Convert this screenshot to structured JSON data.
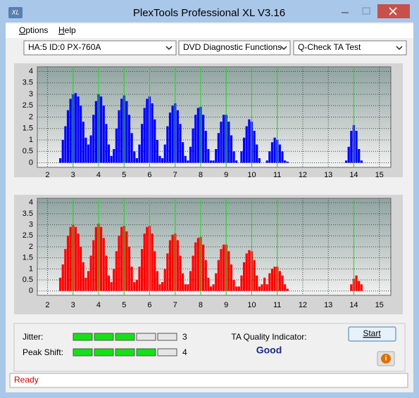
{
  "window": {
    "title": "PlexTools Professional XL V3.16"
  },
  "menu": [
    "Options",
    "Help"
  ],
  "dropdowns": [
    "HA:5 ID:0  PX-760A",
    "DVD Diagnostic Functions",
    "Q-Check TA Test"
  ],
  "charts": [
    {
      "type": "bar",
      "color": "#0000ff",
      "x": [
        2.5,
        2.6,
        2.7,
        2.8,
        2.9,
        3.0,
        3.1,
        3.2,
        3.3,
        3.4,
        3.5,
        3.6,
        3.7,
        3.8,
        3.9,
        4.0,
        4.1,
        4.2,
        4.3,
        4.4,
        4.5,
        4.6,
        4.7,
        4.8,
        4.9,
        5.0,
        5.1,
        5.2,
        5.3,
        5.4,
        5.5,
        5.6,
        5.7,
        5.8,
        5.9,
        6.0,
        6.1,
        6.2,
        6.3,
        6.4,
        6.5,
        6.6,
        6.7,
        6.8,
        6.9,
        7.0,
        7.1,
        7.2,
        7.3,
        7.4,
        7.5,
        7.6,
        7.7,
        7.8,
        7.9,
        8.0,
        8.1,
        8.2,
        8.3,
        8.4,
        8.5,
        8.6,
        8.7,
        8.8,
        8.9,
        9.0,
        9.1,
        9.2,
        9.3,
        9.4,
        9.5,
        9.6,
        9.7,
        9.8,
        9.9,
        10.0,
        10.1,
        10.2,
        10.3,
        10.4,
        10.5,
        10.6,
        10.7,
        10.8,
        10.9,
        11.0,
        11.1,
        11.2,
        11.3,
        11.4,
        13.7,
        13.8,
        13.9,
        14.0,
        14.1,
        14.2,
        14.3
      ],
      "values": [
        0.2,
        1.0,
        1.6,
        2.3,
        2.8,
        3.0,
        3.05,
        2.9,
        2.5,
        1.8,
        1.1,
        0.8,
        1.2,
        2.1,
        2.7,
        3.0,
        2.9,
        2.5,
        1.7,
        0.8,
        0.3,
        0.6,
        1.5,
        2.3,
        2.8,
        2.95,
        2.7,
        2.1,
        1.3,
        0.5,
        0.2,
        0.8,
        1.7,
        2.4,
        2.8,
        2.9,
        2.6,
        1.9,
        1.0,
        0.3,
        0.2,
        0.8,
        1.6,
        2.2,
        2.5,
        2.6,
        2.3,
        1.7,
        0.9,
        0.3,
        0.1,
        0.7,
        1.5,
        2.1,
        2.4,
        2.45,
        2.1,
        1.4,
        0.6,
        0.1,
        0.1,
        0.6,
        1.3,
        1.8,
        2.1,
        2.1,
        1.8,
        1.2,
        0.5,
        0.1,
        0,
        0.5,
        1.1,
        1.6,
        1.9,
        1.8,
        1.4,
        0.8,
        0.2,
        0,
        0,
        0.1,
        0.5,
        0.9,
        1.1,
        1.0,
        0.8,
        0.5,
        0.1,
        0.05,
        0.1,
        0.7,
        1.4,
        1.65,
        1.4,
        0.6,
        0.1
      ],
      "xlim": [
        1.6,
        15.45
      ],
      "ylim": [
        -0.2,
        4.2
      ],
      "xticks": [
        2,
        3,
        4,
        5,
        6,
        7,
        8,
        9,
        10,
        11,
        12,
        13,
        14,
        15
      ],
      "yticks": [
        0,
        0.5,
        1,
        1.5,
        2,
        2.5,
        3,
        3.5,
        4
      ],
      "markers": [
        3,
        4,
        5,
        6,
        7,
        8,
        9,
        10,
        11,
        14
      ]
    },
    {
      "type": "bar",
      "color": "#ff0000",
      "x": [
        2.5,
        2.6,
        2.7,
        2.8,
        2.9,
        3.0,
        3.1,
        3.2,
        3.3,
        3.4,
        3.5,
        3.6,
        3.7,
        3.8,
        3.9,
        4.0,
        4.1,
        4.2,
        4.3,
        4.4,
        4.5,
        4.6,
        4.7,
        4.8,
        4.9,
        5.0,
        5.1,
        5.2,
        5.3,
        5.4,
        5.5,
        5.6,
        5.7,
        5.8,
        5.9,
        6.0,
        6.1,
        6.2,
        6.3,
        6.4,
        6.5,
        6.6,
        6.7,
        6.8,
        6.9,
        7.0,
        7.1,
        7.2,
        7.3,
        7.4,
        7.5,
        7.6,
        7.7,
        7.8,
        7.9,
        8.0,
        8.1,
        8.2,
        8.3,
        8.4,
        8.5,
        8.6,
        8.7,
        8.8,
        8.9,
        9.0,
        9.1,
        9.2,
        9.3,
        9.4,
        9.5,
        9.6,
        9.7,
        9.8,
        9.9,
        10.0,
        10.1,
        10.2,
        10.3,
        10.4,
        10.5,
        10.6,
        10.7,
        10.8,
        10.9,
        11.0,
        11.1,
        11.2,
        11.3,
        11.4,
        13.7,
        13.8,
        13.9,
        14.0,
        14.1,
        14.2,
        14.3
      ],
      "values": [
        0.6,
        1.2,
        1.9,
        2.5,
        2.9,
        3.0,
        2.9,
        2.6,
        2.0,
        1.3,
        0.6,
        0.9,
        1.6,
        2.3,
        2.9,
        3.05,
        2.9,
        2.4,
        1.6,
        0.7,
        0.4,
        1.0,
        1.8,
        2.5,
        2.9,
        2.95,
        2.7,
        2.0,
        1.1,
        0.4,
        0.5,
        1.1,
        1.9,
        2.6,
        2.9,
        2.95,
        2.6,
        1.8,
        0.9,
        0.3,
        0.4,
        1.0,
        1.7,
        2.3,
        2.55,
        2.6,
        2.3,
        1.6,
        0.8,
        0.3,
        0.3,
        0.9,
        1.6,
        2.2,
        2.4,
        2.45,
        2.1,
        1.4,
        0.6,
        0.2,
        0.3,
        0.8,
        1.4,
        1.9,
        2.1,
        2.1,
        1.8,
        1.2,
        0.5,
        0.2,
        0.2,
        0.7,
        1.3,
        1.7,
        1.85,
        1.8,
        1.4,
        0.7,
        0.2,
        0.3,
        0.6,
        0.3,
        0.8,
        1.0,
        1.1,
        1.1,
        0.9,
        0.7,
        0.3,
        0.1,
        0,
        0,
        0.3,
        0.55,
        0.7,
        0.45,
        0.3
      ],
      "xlim": [
        1.6,
        15.45
      ],
      "ylim": [
        -0.2,
        4.2
      ],
      "xticks": [
        2,
        3,
        4,
        5,
        6,
        7,
        8,
        9,
        10,
        11,
        12,
        13,
        14,
        15
      ],
      "yticks": [
        0,
        0.5,
        1,
        1.5,
        2,
        2.5,
        3,
        3.5,
        4
      ],
      "markers": [
        3,
        4,
        5,
        6,
        7,
        8,
        9,
        10,
        11,
        14
      ]
    }
  ],
  "results": {
    "jitter": {
      "label": "Jitter:",
      "value": 3
    },
    "peak_shift": {
      "label": "Peak Shift:",
      "value": 4
    },
    "quality_label": "TA Quality Indicator:",
    "quality": "Good"
  },
  "buttons": {
    "start": "Start"
  },
  "status": "Ready"
}
